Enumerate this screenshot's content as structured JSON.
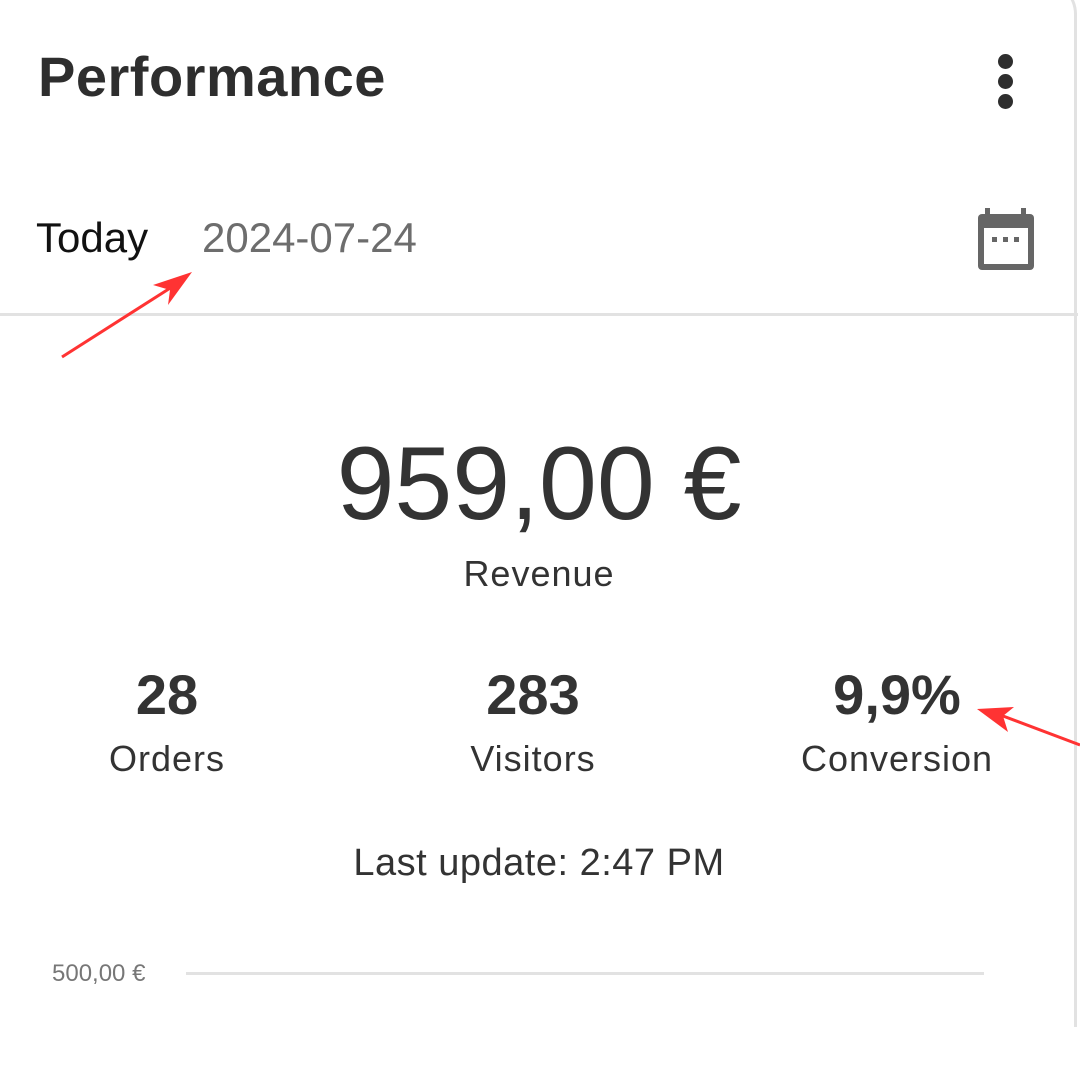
{
  "header": {
    "title": "Performance",
    "more_icon": "more-vert-icon"
  },
  "date_row": {
    "period": "Today",
    "date": "2024-07-24",
    "calendar_icon": "calendar-icon"
  },
  "revenue": {
    "value": "959,00 €",
    "label": "Revenue"
  },
  "stats": [
    {
      "value": "28",
      "label": "Orders"
    },
    {
      "value": "283",
      "label": "Visitors"
    },
    {
      "value": "9,9%",
      "label": "Conversion"
    }
  ],
  "last_update": "Last update: 2:47 PM",
  "chart": {
    "y_tick": "500,00 €"
  },
  "annotation_color": "#ff3333"
}
